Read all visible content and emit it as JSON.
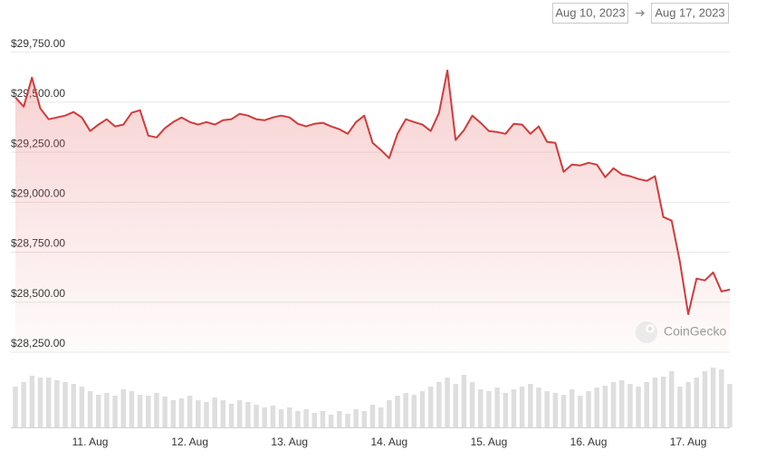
{
  "date_range": {
    "from": "Aug 10, 2023",
    "to": "Aug 17, 2023"
  },
  "watermark": "CoinGecko",
  "chart_data": {
    "type": "line",
    "categories": [
      null,
      null,
      null,
      null,
      null,
      null,
      null,
      null,
      null,
      "11. Aug",
      null,
      null,
      null,
      null,
      null,
      null,
      null,
      null,
      null,
      null,
      null,
      "12. Aug",
      null,
      null,
      null,
      null,
      null,
      null,
      null,
      null,
      null,
      null,
      null,
      "13. Aug",
      null,
      null,
      null,
      null,
      null,
      null,
      null,
      null,
      null,
      null,
      null,
      "14. Aug",
      null,
      null,
      null,
      null,
      null,
      null,
      null,
      null,
      null,
      null,
      null,
      "15. Aug",
      null,
      null,
      null,
      null,
      null,
      null,
      null,
      null,
      null,
      null,
      null,
      "16. Aug",
      null,
      null,
      null,
      null,
      null,
      null,
      null,
      null,
      null,
      null,
      null,
      "17. Aug",
      null,
      null,
      null,
      null,
      null
    ],
    "series": [
      {
        "color": "#d13b3b",
        "values": [
          29524,
          29478,
          29623,
          29469,
          29415,
          29424,
          29433,
          29451,
          29424,
          29356,
          29388,
          29415,
          29379,
          29388,
          29447,
          29460,
          29333,
          29324,
          29370,
          29401,
          29424,
          29401,
          29388,
          29401,
          29388,
          29410,
          29415,
          29442,
          29433,
          29415,
          29410,
          29424,
          29433,
          29424,
          29392,
          29379,
          29392,
          29397,
          29379,
          29365,
          29342,
          29401,
          29433,
          29297,
          29261,
          29220,
          29342,
          29415,
          29401,
          29388,
          29356,
          29447,
          29659,
          29311,
          29360,
          29433,
          29397,
          29356,
          29351,
          29342,
          29392,
          29388,
          29342,
          29379,
          29302,
          29297,
          29152,
          29188,
          29184,
          29197,
          29188,
          29125,
          29170,
          29139,
          29130,
          29116,
          29107,
          29130,
          28926,
          28908,
          28700,
          28440,
          28618,
          28609,
          28649,
          28554,
          28563
        ]
      },
      {
        "type": "bar",
        "axis": "y2",
        "color": "#dedede",
        "values": [
          45,
          50,
          57,
          55,
          55,
          52,
          50,
          48,
          45,
          40,
          36,
          38,
          35,
          42,
          40,
          36,
          35,
          38,
          34,
          30,
          32,
          35,
          30,
          28,
          33,
          30,
          26,
          30,
          28,
          25,
          22,
          24,
          20,
          22,
          18,
          20,
          16,
          18,
          14,
          18,
          15,
          20,
          18,
          25,
          22,
          30,
          35,
          38,
          36,
          40,
          45,
          50,
          55,
          48,
          58,
          50,
          42,
          40,
          44,
          38,
          42,
          45,
          48,
          44,
          40,
          38,
          36,
          42,
          35,
          40,
          44,
          46,
          50,
          52,
          48,
          45,
          50,
          55,
          56,
          62,
          45,
          50,
          55,
          62,
          66,
          64,
          48
        ]
      }
    ],
    "ylim": [
      28250,
      29830
    ],
    "yticks": [
      {
        "value": 28250,
        "label": "$28,250.00"
      },
      {
        "value": 28500,
        "label": "$28,500.00"
      },
      {
        "value": 28750,
        "label": "$28,750.00"
      },
      {
        "value": 29000,
        "label": "$29,000.00"
      },
      {
        "value": 29250,
        "label": "$29,250.00"
      },
      {
        "value": 29500,
        "label": "$29,500.00"
      },
      {
        "value": 29750,
        "label": "$29,750.00"
      }
    ],
    "y2lim": [
      0,
      72
    ],
    "grid": true
  }
}
